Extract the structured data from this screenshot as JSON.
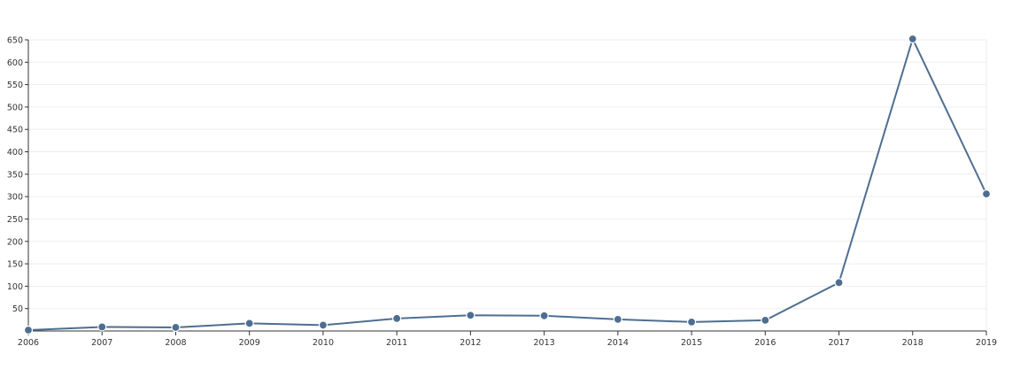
{
  "chart_data": {
    "type": "line",
    "title": "",
    "xlabel": "",
    "ylabel": "",
    "x": [
      "2006",
      "2007",
      "2008",
      "2009",
      "2010",
      "2011",
      "2012",
      "2013",
      "2014",
      "2015",
      "2016",
      "2017",
      "2018",
      "2019"
    ],
    "series": [
      {
        "values": [
          2,
          9,
          8,
          17,
          13,
          28,
          35,
          34,
          26,
          20,
          24,
          108,
          652,
          306
        ]
      }
    ],
    "ylim": [
      0,
      650
    ],
    "yticks": [
      50,
      100,
      150,
      200,
      250,
      300,
      350,
      400,
      450,
      500,
      550,
      600,
      650
    ],
    "grid": true,
    "legend": "none",
    "colors": {
      "line": "#4e6e91",
      "grid": "#eeeeee",
      "axis": "#333333",
      "text": "#333333"
    }
  }
}
